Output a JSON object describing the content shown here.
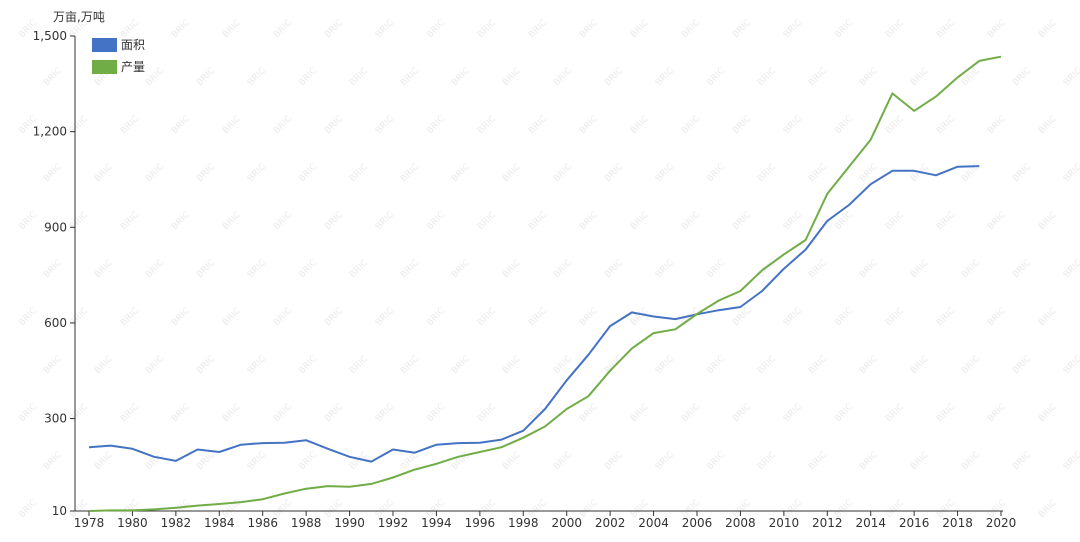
{
  "chart_data": {
    "type": "line",
    "title": "",
    "ylabel": "万亩,万吨",
    "xlabel": "",
    "x": [
      1978,
      1979,
      1980,
      1981,
      1982,
      1983,
      1984,
      1985,
      1986,
      1987,
      1988,
      1989,
      1990,
      1991,
      1992,
      1993,
      1994,
      1995,
      1996,
      1997,
      1998,
      1999,
      2000,
      2001,
      2002,
      2003,
      2004,
      2005,
      2006,
      2007,
      2008,
      2009,
      2010,
      2011,
      2012,
      2013,
      2014,
      2015,
      2016,
      2017,
      2018,
      2019,
      2020
    ],
    "x_tick_labels": [
      "1978",
      "1980",
      "1982",
      "1984",
      "1986",
      "1988",
      "1990",
      "1992",
      "1994",
      "1996",
      "1998",
      "2000",
      "2002",
      "2004",
      "2006",
      "2008",
      "2010",
      "2012",
      "2014",
      "2016",
      "2018",
      "2020"
    ],
    "y_tick_values": [
      10,
      300,
      600,
      900,
      1200,
      1500
    ],
    "y_tick_labels": [
      "10",
      "300",
      "600",
      "900",
      "1,200",
      "1,500"
    ],
    "ylim": [
      10,
      1500
    ],
    "grid": false,
    "legend_position": "top-left",
    "watermark_text": "BRIC",
    "series": [
      {
        "name": "面积",
        "color": "#4472c4",
        "values": [
          210,
          215,
          205,
          180,
          167,
          203,
          195,
          218,
          223,
          224,
          232,
          205,
          180,
          165,
          203,
          193,
          218,
          223,
          224,
          234,
          262,
          330,
          420,
          500,
          590,
          633,
          620,
          612,
          627,
          640,
          650,
          700,
          770,
          830,
          920,
          970,
          1035,
          1077,
          1077,
          1063,
          1090,
          1092,
          null
        ]
      },
      {
        "name": "产量",
        "color": "#70ad47",
        "values": [
          10,
          12,
          12,
          15,
          20,
          27,
          32,
          38,
          47,
          65,
          80,
          88,
          86,
          95,
          115,
          140,
          158,
          180,
          195,
          210,
          240,
          275,
          330,
          370,
          450,
          520,
          568,
          580,
          628,
          670,
          700,
          765,
          815,
          860,
          1005,
          1090,
          1175,
          1320,
          1265,
          1310,
          1370,
          1422,
          1435
        ]
      }
    ]
  }
}
